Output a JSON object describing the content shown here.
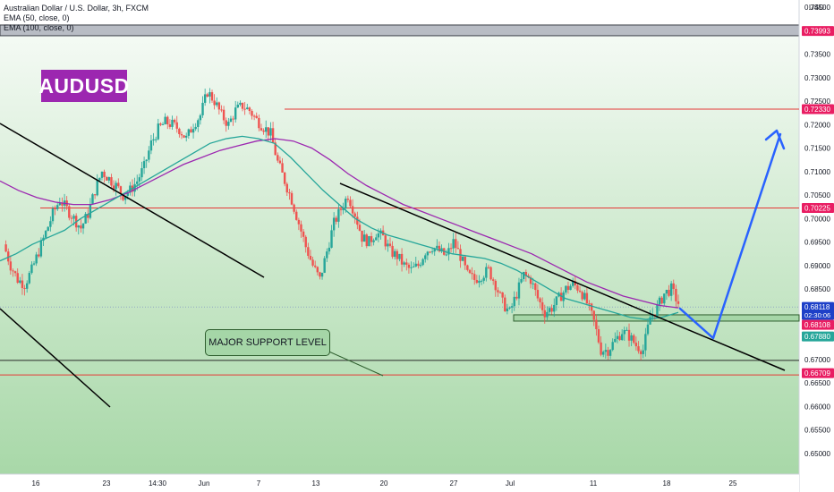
{
  "legend": {
    "symbol": "Australian Dollar / U.S. Dollar, 3h, FXCM",
    "ema1": "EMA (50, close, 0)",
    "ema2": "EMA (100, close, 0)"
  },
  "badge": "AUDUSD",
  "annotation": "MAJOR SUPPORT LEVEL",
  "axis_currency": "USD",
  "chart_data": {
    "type": "candlestick",
    "symbol": "AUDUSD",
    "timeframe": "3h",
    "ylim": [
      0.6475,
      0.745
    ],
    "y_ticks": [
      "0.74500",
      "0.73500",
      "0.73000",
      "0.72500",
      "0.72000",
      "0.71500",
      "0.71000",
      "0.70500",
      "0.70000",
      "0.69500",
      "0.69000",
      "0.68500",
      "0.68000",
      "0.67500",
      "0.67000",
      "0.66500",
      "0.66000",
      "0.65500",
      "0.65000"
    ],
    "x_ticks": [
      "16",
      "23",
      "14:30",
      "Jun",
      "7",
      "13",
      "20",
      "27",
      "Jul",
      "11",
      "18",
      "25"
    ],
    "price_tags": [
      {
        "label": "0.73993",
        "value": 0.73993,
        "color": "#e91e63"
      },
      {
        "label": "0.72330",
        "value": 0.7233,
        "color": "#e91e63"
      },
      {
        "label": "0.70225",
        "value": 0.70225,
        "color": "#e91e63"
      },
      {
        "label": "0.68118",
        "value": 0.68118,
        "color": "#1e40c8",
        "sub": "02:30:06"
      },
      {
        "label": "0.68108",
        "value": 0.68108,
        "color": "#e91e63"
      },
      {
        "label": "0.67880",
        "value": 0.6788,
        "color": "#26a69a"
      },
      {
        "label": "0.66709",
        "value": 0.66709,
        "color": "#e91e63"
      }
    ],
    "horizontal_levels": [
      0.74,
      0.7233,
      0.70225,
      0.67,
      0.66709
    ],
    "support_zone": [
      0.6788,
      0.6795
    ],
    "price_path": [
      0.6945,
      0.69,
      0.687,
      0.686,
      0.689,
      0.693,
      0.697,
      0.701,
      0.704,
      0.702,
      0.7,
      0.698,
      0.701,
      0.706,
      0.71,
      0.7085,
      0.707,
      0.705,
      0.706,
      0.708,
      0.711,
      0.716,
      0.719,
      0.7205,
      0.72,
      0.719,
      0.717,
      0.72,
      0.722,
      0.727,
      0.725,
      0.722,
      0.72,
      0.723,
      0.724,
      0.723,
      0.721,
      0.7195,
      0.718,
      0.712,
      0.708,
      0.704,
      0.699,
      0.694,
      0.69,
      0.687,
      0.693,
      0.699,
      0.702,
      0.705,
      0.701,
      0.696,
      0.695,
      0.697,
      0.696,
      0.693,
      0.692,
      0.69,
      0.689,
      0.69,
      0.693,
      0.694,
      0.693,
      0.692,
      0.695,
      0.692,
      0.688,
      0.687,
      0.688,
      0.689,
      0.686,
      0.682,
      0.68,
      0.684,
      0.688,
      0.687,
      0.683,
      0.68,
      0.681,
      0.683,
      0.685,
      0.686,
      0.685,
      0.682,
      0.678,
      0.672,
      0.672,
      0.674,
      0.676,
      0.675,
      0.673,
      0.672,
      0.679,
      0.681,
      0.684,
      0.685,
      0.682
    ],
    "ema50_path": [
      0.691,
      0.6925,
      0.6945,
      0.696,
      0.6975,
      0.7,
      0.702,
      0.704,
      0.706,
      0.708,
      0.71,
      0.712,
      0.714,
      0.716,
      0.717,
      0.7175,
      0.717,
      0.716,
      0.713,
      0.7095,
      0.706,
      0.703,
      0.7,
      0.698,
      0.6965,
      0.6955,
      0.6945,
      0.6935,
      0.6925,
      0.692,
      0.6915,
      0.6905,
      0.689,
      0.687,
      0.685,
      0.683,
      0.682,
      0.681,
      0.68,
      0.679,
      0.6785,
      0.679,
      0.68
    ],
    "ema100_path": [
      0.708,
      0.706,
      0.7045,
      0.7035,
      0.703,
      0.703,
      0.704,
      0.7055,
      0.7075,
      0.7095,
      0.7115,
      0.713,
      0.7145,
      0.7155,
      0.7165,
      0.717,
      0.7165,
      0.715,
      0.7125,
      0.7095,
      0.707,
      0.705,
      0.703,
      0.7015,
      0.7,
      0.6985,
      0.697,
      0.6955,
      0.694,
      0.6925,
      0.6905,
      0.6885,
      0.6865,
      0.685,
      0.6835,
      0.6825,
      0.6815,
      0.681
    ],
    "trendlines": [
      {
        "name": "upper-left-trendline",
        "color": "#000000"
      },
      {
        "name": "lower-left-trendline",
        "color": "#000000"
      },
      {
        "name": "descending-resistance",
        "color": "#000000"
      }
    ],
    "projection_color": "#2962ff",
    "colors": {
      "up": "#26a69a",
      "down": "#ef5350",
      "bg_green": "#c8e6c9",
      "level_red": "#e53935",
      "ema50": "#26a69a",
      "ema100": "#9c27b0"
    }
  }
}
